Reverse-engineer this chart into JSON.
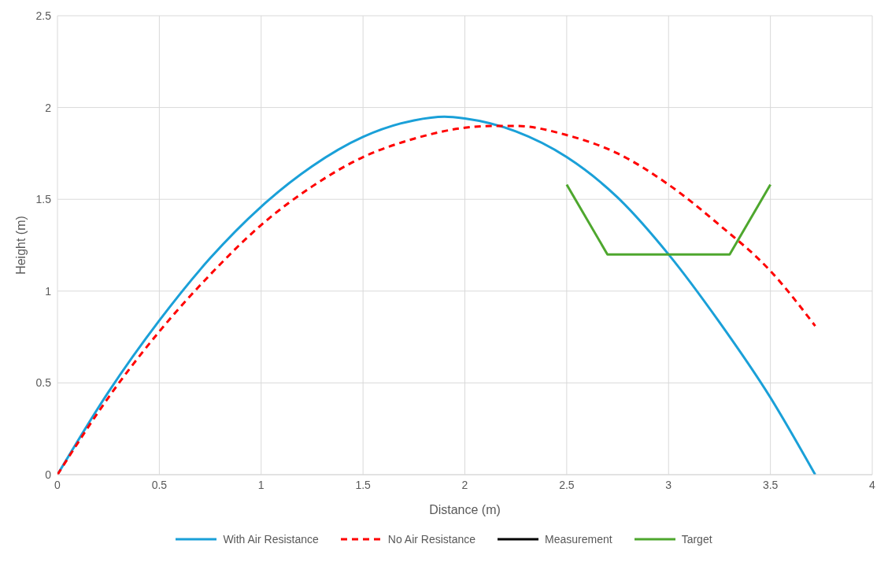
{
  "chart_data": {
    "type": "line",
    "xlabel": "Distance (m)",
    "ylabel": "Height (m)",
    "xlim": [
      0,
      4
    ],
    "xticks": [
      0,
      0.5,
      1,
      1.5,
      2,
      2.5,
      3,
      3.5,
      4
    ],
    "ylim": [
      0,
      2.5
    ],
    "yticks": [
      0,
      0.5,
      1,
      1.5,
      2,
      2.5
    ],
    "grid": true,
    "legend": "bottom",
    "marker": "none",
    "series": [
      {
        "name": "With Air Resistance",
        "color": "#1aa0d8",
        "line_style": "solid",
        "x": [
          0,
          0.25,
          0.5,
          0.75,
          1,
          1.25,
          1.5,
          1.75,
          1.9,
          2,
          2.25,
          2.5,
          2.75,
          3,
          3.25,
          3.5,
          3.72
        ],
        "values": [
          0,
          0.45,
          0.84,
          1.18,
          1.46,
          1.68,
          1.84,
          1.93,
          1.95,
          1.94,
          1.87,
          1.73,
          1.51,
          1.2,
          0.83,
          0.42,
          0
        ]
      },
      {
        "name": "No Air Resistance",
        "color": "#ff0000",
        "line_style": "dashed",
        "x": [
          0,
          0.25,
          0.5,
          0.75,
          1,
          1.25,
          1.5,
          1.75,
          2,
          2.15,
          2.25,
          2.5,
          2.75,
          3,
          3.25,
          3.5,
          3.72
        ],
        "values": [
          0,
          0.42,
          0.78,
          1.09,
          1.36,
          1.57,
          1.73,
          1.83,
          1.89,
          1.9,
          1.9,
          1.85,
          1.75,
          1.58,
          1.36,
          1.11,
          0.81
        ]
      },
      {
        "name": "Measurement",
        "color": "#000000",
        "line_style": "solid"
      },
      {
        "name": "Target",
        "color": "#4ea72e",
        "line_style": "solid",
        "x": [
          2.5,
          2.7,
          3.3,
          3.5
        ],
        "values": [
          1.58,
          1.2,
          1.2,
          1.58
        ]
      }
    ]
  }
}
